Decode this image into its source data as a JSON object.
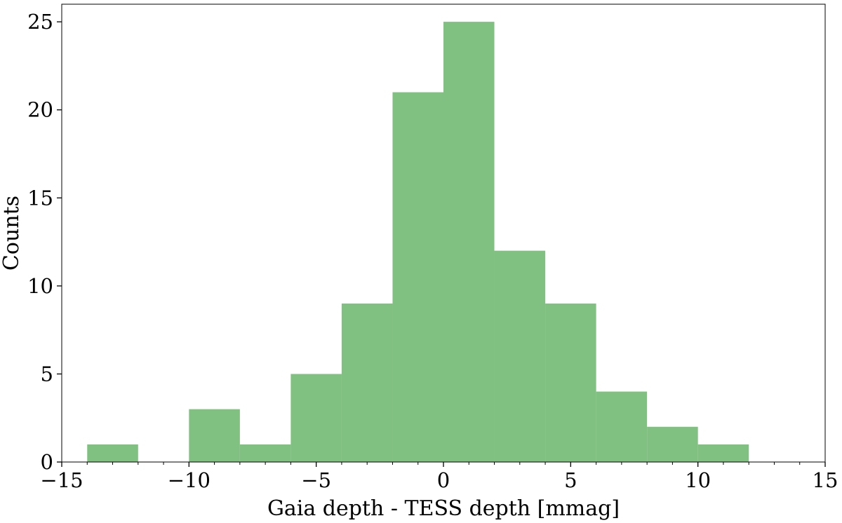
{
  "chart_data": {
    "type": "histogram",
    "title": "",
    "xlabel": "Gaia depth - TESS depth [mmag]",
    "ylabel": "Counts",
    "xlim": [
      -15,
      15
    ],
    "ylim": [
      0,
      26
    ],
    "xticks": [
      -15,
      -10,
      -5,
      0,
      5,
      10,
      15
    ],
    "xtick_labels": [
      "−15",
      "−10",
      "−5",
      "0",
      "5",
      "10",
      "15"
    ],
    "yticks": [
      0,
      5,
      10,
      15,
      20,
      25
    ],
    "ytick_labels": [
      "0",
      "5",
      "10",
      "15",
      "20",
      "25"
    ],
    "bins": [
      {
        "x0": -14,
        "x1": -12,
        "count": 1
      },
      {
        "x0": -12,
        "x1": -10,
        "count": 0
      },
      {
        "x0": -10,
        "x1": -8,
        "count": 3
      },
      {
        "x0": -8,
        "x1": -6,
        "count": 1
      },
      {
        "x0": -6,
        "x1": -4,
        "count": 5
      },
      {
        "x0": -4,
        "x1": -2,
        "count": 9
      },
      {
        "x0": -2,
        "x1": 0,
        "count": 21
      },
      {
        "x0": 0,
        "x1": 2,
        "count": 25
      },
      {
        "x0": 2,
        "x1": 4,
        "count": 12
      },
      {
        "x0": 4,
        "x1": 6,
        "count": 9
      },
      {
        "x0": 6,
        "x1": 8,
        "count": 4
      },
      {
        "x0": 8,
        "x1": 10,
        "count": 2
      },
      {
        "x0": 10,
        "x1": 12,
        "count": 1
      }
    ],
    "bar_color": "#80c080",
    "grid": false,
    "legend": "none"
  }
}
